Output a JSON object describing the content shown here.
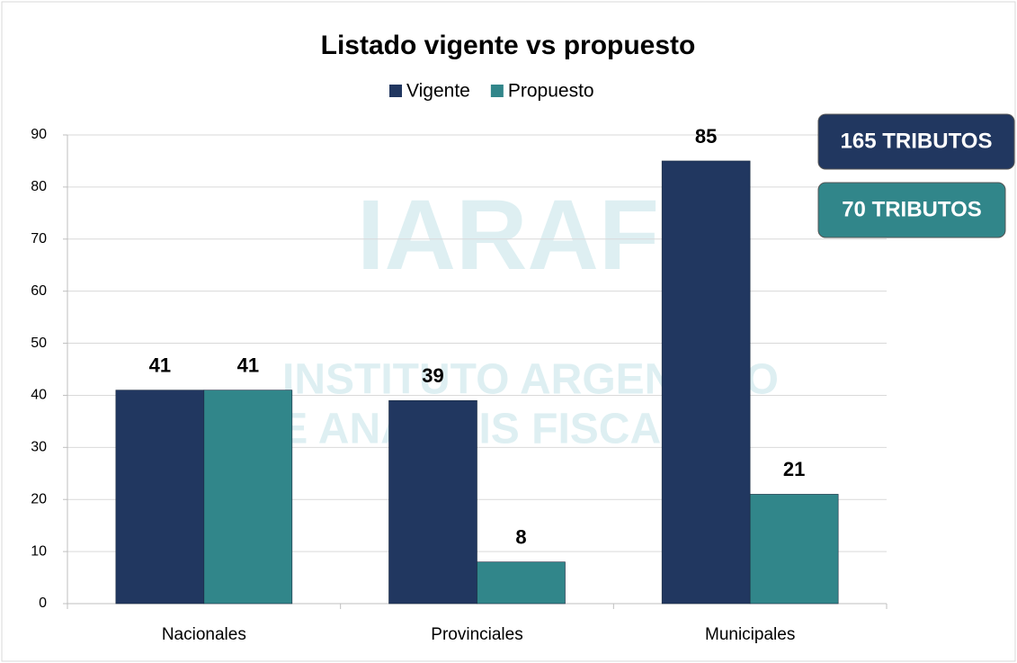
{
  "chart_data": {
    "type": "bar",
    "title": "Listado vigente vs propuesto",
    "categories": [
      "Nacionales",
      "Provinciales",
      "Municipales"
    ],
    "series": [
      {
        "name": "Vigente",
        "color": "#213760",
        "values": [
          41,
          39,
          85
        ]
      },
      {
        "name": "Propuesto",
        "color": "#31868a",
        "values": [
          41,
          8,
          21
        ]
      }
    ],
    "ylim": [
      0,
      90
    ],
    "yticks": [
      0,
      10,
      20,
      30,
      40,
      50,
      60,
      70,
      80,
      90
    ],
    "grid": true,
    "legend": "top",
    "watermark": [
      "IARAF",
      "INSTITUTO ARGENTINO",
      "DE ANÁLISIS FISCAL"
    ],
    "annotations": [
      {
        "text": "165 TRIBUTOS",
        "color": "#213760"
      },
      {
        "text": "70 TRIBUTOS",
        "color": "#31868a"
      }
    ]
  }
}
